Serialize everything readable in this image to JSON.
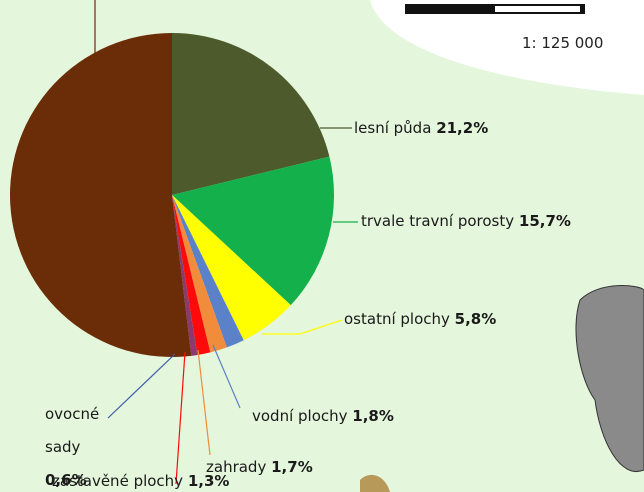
{
  "chart_data": {
    "type": "pie",
    "scale": "1: 125 000",
    "categories": [
      "lesní půda",
      "trvale travní porosty",
      "ostatní plochy",
      "vodní plochy",
      "zahrady",
      "zastavěné plochy",
      "ovocné sady",
      null
    ],
    "values": [
      21.2,
      15.7,
      5.8,
      1.8,
      1.7,
      1.3,
      0.6,
      51.9
    ],
    "value_labels": [
      "21,2%",
      "15,7%",
      "5,8%",
      "1,8%",
      "1,7%",
      "1,3%",
      "0,6%",
      null
    ],
    "colors": [
      "#4c5a2c",
      "#14b04c",
      "#ffff00",
      "#5b82c8",
      "#f08c3c",
      "#ff0a0a",
      "#8c3a6e",
      "#6b2c08"
    ]
  }
}
